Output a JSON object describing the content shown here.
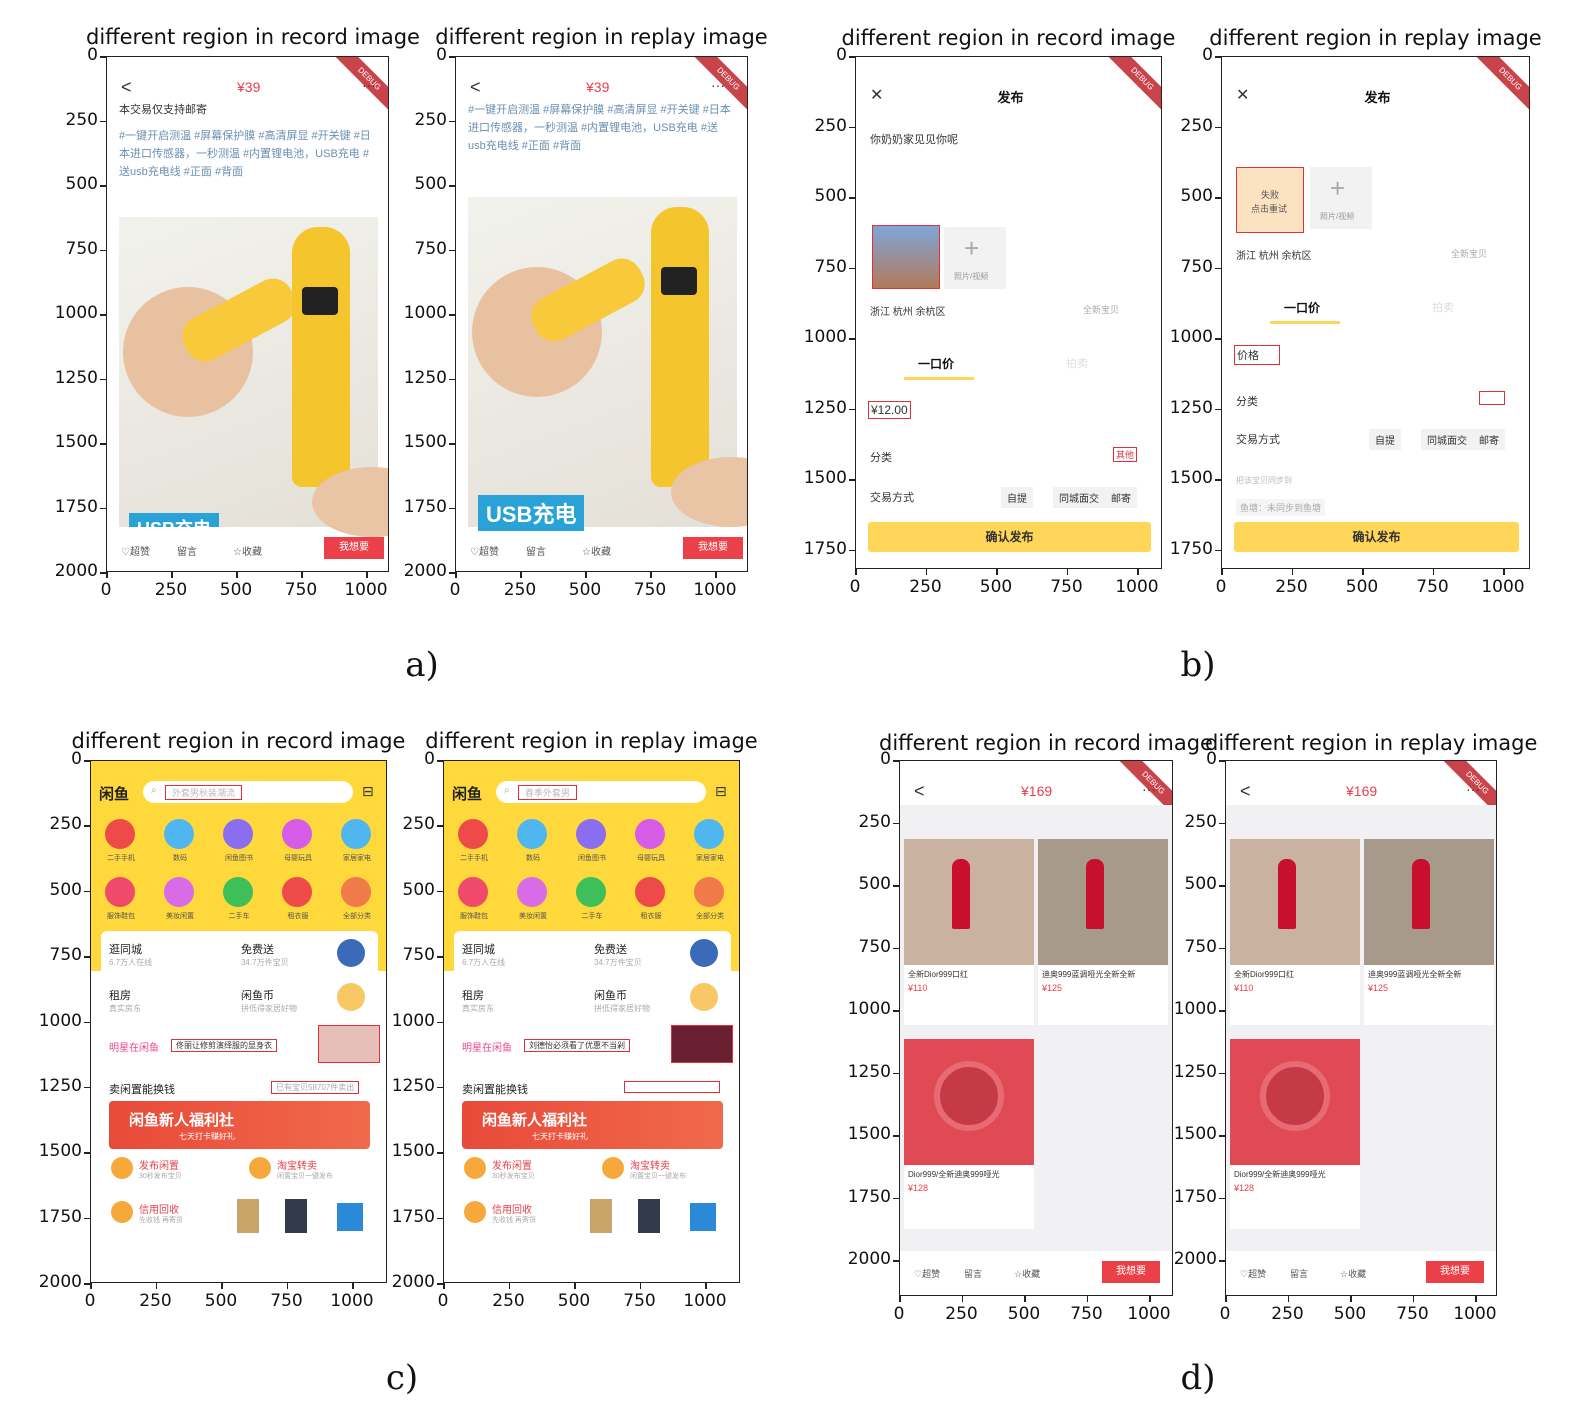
{
  "figure_labels": [
    "a)",
    "b)",
    "c)",
    "d)"
  ],
  "record_title": "different region in record image",
  "replay_title": "different region in replay image",
  "x_ticks": [
    "0",
    "250",
    "500",
    "750",
    "1000"
  ],
  "y_ticks_a": [
    "0",
    "250",
    "500",
    "750",
    "1000",
    "1250",
    "1500",
    "1750",
    "2000"
  ],
  "y_ticks_b": [
    "0",
    "250",
    "500",
    "750",
    "1000",
    "1250",
    "1500",
    "1750"
  ],
  "y_ticks_c": [
    "0",
    "250",
    "500",
    "750",
    "1000",
    "1250",
    "1500",
    "1750",
    "2000"
  ],
  "y_ticks_d": [
    "0",
    "250",
    "500",
    "750",
    "1000",
    "1250",
    "1500",
    "1750",
    "2000"
  ],
  "debug_ribbon": "DEBUG",
  "screen_a": {
    "back": "<",
    "price": "¥39",
    "more": "···",
    "record_top_line": "本交易仅支持邮寄",
    "record_tags": "#一键开启测温 #屏幕保护膜 #高清屏显 #开关键 #日本进口传感器，一秒测温 #内置锂电池，USB充电 #送usb充电线 #正面 #背面",
    "replay_tags": "#一键开启测温 #屏幕保护膜 #高清屏显 #开关键 #日本进口传感器，一秒测温 #内置锂电池，USB充电 #送usb充电线 #正面 #背面",
    "usb_label": "USB充电",
    "like": "♡超赞",
    "comment": "留言",
    "fav": "☆收藏",
    "want": "我想要"
  },
  "screen_b": {
    "close": "✕",
    "title": "发布",
    "desc": "你奶奶家见见你呢",
    "add_media": "照片/视频",
    "replay_fail_line1": "失败",
    "replay_fail_line2": "点击重试",
    "location": "浙江 杭州 余杭区",
    "new_item": "全新宝贝",
    "tab_fixed": "一口价",
    "tab_auction": "拍卖",
    "record_price": "¥12.00",
    "replay_price": "价格",
    "category": "分类",
    "record_category_value": "其他",
    "trade_mode": "交易方式",
    "trade_options": [
      "自提",
      "同城面交",
      "邮寄"
    ],
    "replay_sync_label": "把该宝贝同步到",
    "replay_sync_value": "鱼塘：未同步到鱼塘",
    "confirm": "确认发布"
  },
  "screen_c": {
    "logo": "闲鱼",
    "record_search": "外套男秋装潮流",
    "replay_search": "春季外套男",
    "icons_row1": [
      "二手手机",
      "数码",
      "闲鱼图书",
      "母婴玩具",
      "家居家电"
    ],
    "icons_row2": [
      "服饰鞋包",
      "美妆闲置",
      "二手车",
      "租衣服",
      "全部分类"
    ],
    "icon_colors_row1": [
      "#ef4a4a",
      "#4fb6f0",
      "#8a6df0",
      "#d55ce6",
      "#4fb6f0"
    ],
    "icon_colors_row2": [
      "#ef4a6a",
      "#d86ce6",
      "#3fbf5a",
      "#ef4a4a",
      "#f07a4a"
    ],
    "card1_title": "逛同城",
    "card1_sub": "6.7万人在线",
    "card2_title": "免费送",
    "card2_sub": "34.7万件宝贝",
    "card3_title": "租房",
    "card3_sub": "真实房东",
    "card4_title": "闲鱼币",
    "card4_sub": "拼低得家居好物",
    "star_label": "明星在闲鱼",
    "record_star_text": "佟丽让修剪演绎服的显身衣",
    "replay_star_text": "刘德怡必须看了优惠不当剁",
    "sell_title": "卖闲置能换钱",
    "record_sell_count": "已有宝贝58707件卖出",
    "banner": "闲鱼新人福利社",
    "banner_sub": "七天打卡赚好礼",
    "publish": "发布闲置",
    "publish_sub": "30秒发布宝贝",
    "taobao": "淘宝转卖",
    "taobao_sub": "闲置宝贝一键发布",
    "recycle": "信用回收",
    "recycle_sub": "先收钱 再寄货"
  },
  "screen_d": {
    "back": "<",
    "price": "¥169",
    "more": "···",
    "item1_title": "全新Dior999口红",
    "item1_price": "¥110",
    "item2_title": "迪奥999蓝调哑光全新全新",
    "item2_price": "¥125",
    "item3_title": "Dior999/全新迪奥999哑光",
    "item3_price": "¥128",
    "like": "♡超赞",
    "comment": "留言",
    "fav": "☆收藏",
    "want": "我想要"
  }
}
